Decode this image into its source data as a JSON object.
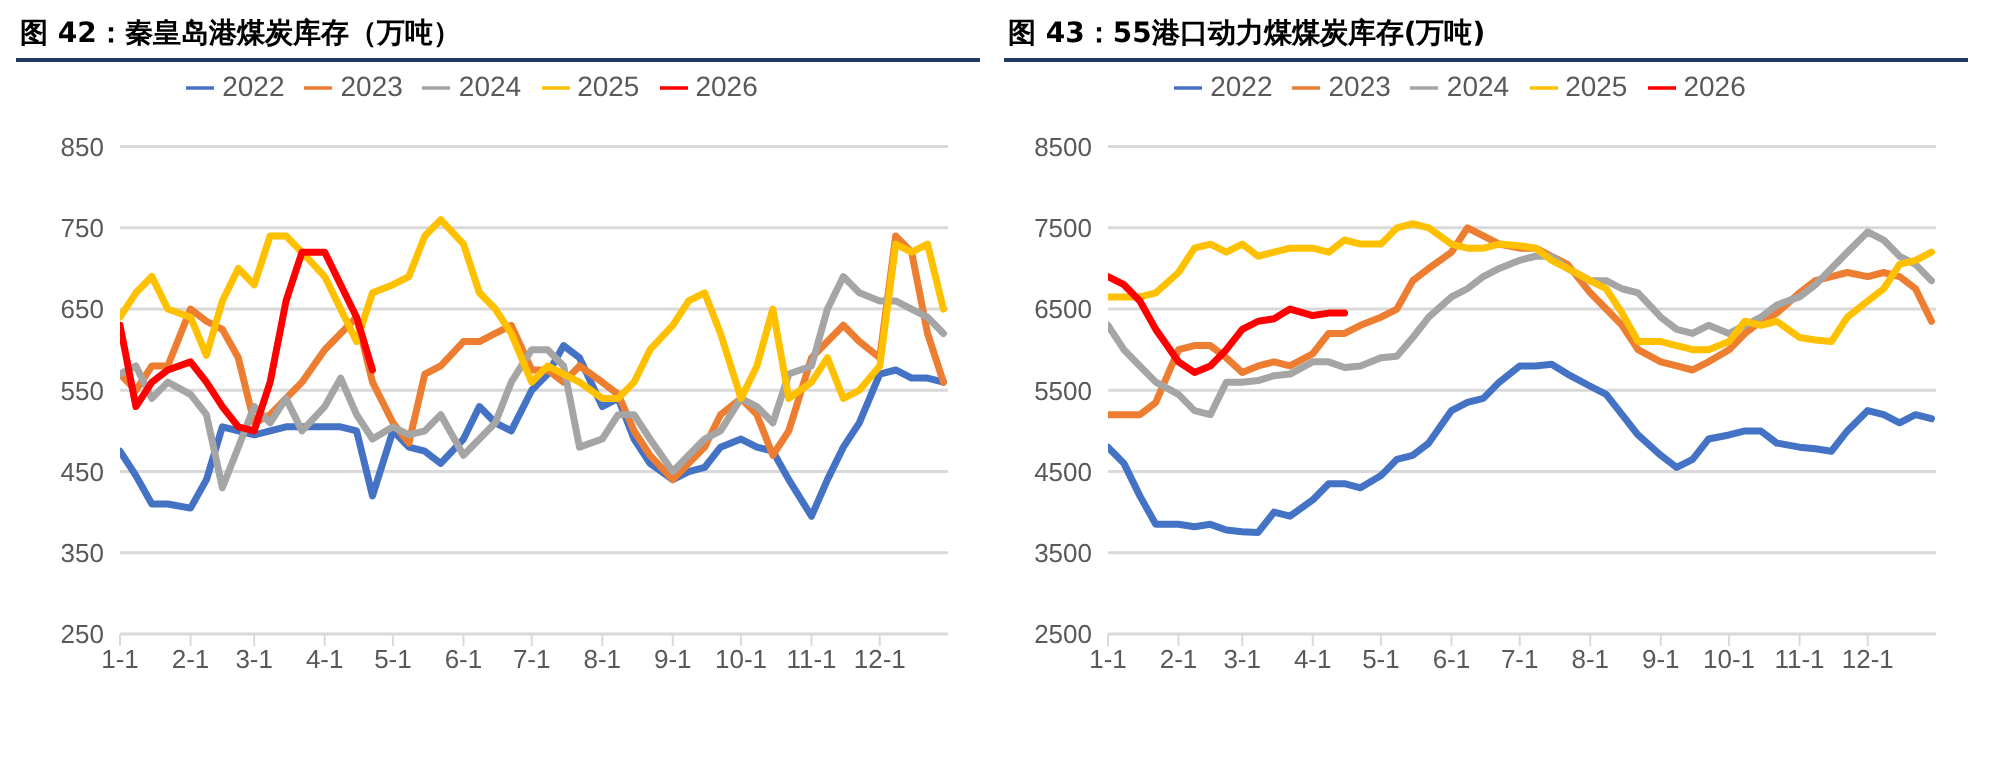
{
  "chart_data": [
    {
      "type": "line",
      "title": "图 42：秦皇岛港煤炭库存（万吨）",
      "legend": "top",
      "grid": "y",
      "marker": "none",
      "line_style": "solid",
      "x": [
        "--01-01",
        "--01-08",
        "--01-15",
        "--01-22",
        "--02-01",
        "--02-08",
        "--02-15",
        "--02-22",
        "--03-01",
        "--03-08",
        "--03-15",
        "--03-22",
        "--04-01",
        "--04-08",
        "--04-15",
        "--04-22",
        "--05-01",
        "--05-08",
        "--05-15",
        "--05-22",
        "--06-01",
        "--06-08",
        "--06-15",
        "--06-22",
        "--07-01",
        "--07-08",
        "--07-15",
        "--07-22",
        "--08-01",
        "--08-08",
        "--08-15",
        "--08-22",
        "--09-01",
        "--09-08",
        "--09-15",
        "--09-22",
        "--10-01",
        "--10-08",
        "--10-15",
        "--10-22",
        "--11-01",
        "--11-08",
        "--11-15",
        "--11-22",
        "--12-01",
        "--12-08",
        "--12-15",
        "--12-22",
        "--12-29"
      ],
      "xlim": [
        "--01-01",
        "--12-31"
      ],
      "xticks": [
        {
          "value": "--01-01",
          "label": "1-1"
        },
        {
          "value": "--02-01",
          "label": "2-1"
        },
        {
          "value": "--03-01",
          "label": "3-1"
        },
        {
          "value": "--04-01",
          "label": "4-1"
        },
        {
          "value": "--05-01",
          "label": "5-1"
        },
        {
          "value": "--06-01",
          "label": "6-1"
        },
        {
          "value": "--07-01",
          "label": "7-1"
        },
        {
          "value": "--08-01",
          "label": "8-1"
        },
        {
          "value": "--09-01",
          "label": "9-1"
        },
        {
          "value": "--10-01",
          "label": "10-1"
        },
        {
          "value": "--11-01",
          "label": "11-1"
        },
        {
          "value": "--12-01",
          "label": "12-1"
        }
      ],
      "ylim": [
        250,
        850
      ],
      "yticks": [
        250,
        350,
        450,
        550,
        650,
        750,
        850
      ],
      "series": [
        {
          "name": "2022",
          "color": "#4472c4",
          "values": [
            475,
            445,
            410,
            410,
            405,
            440,
            505,
            500,
            495,
            500,
            505,
            505,
            505,
            505,
            500,
            420,
            500,
            480,
            475,
            460,
            490,
            530,
            510,
            500,
            550,
            570,
            605,
            590,
            530,
            540,
            490,
            460,
            440,
            450,
            455,
            480,
            490,
            480,
            475,
            440,
            395,
            440,
            480,
            510,
            570,
            575,
            565,
            565,
            560
          ]
        },
        {
          "name": "2023",
          "color": "#ed7d31",
          "values": [
            570,
            550,
            580,
            580,
            650,
            635,
            625,
            590,
            510,
            520,
            540,
            560,
            600,
            620,
            640,
            560,
            510,
            485,
            570,
            580,
            610,
            610,
            620,
            630,
            575,
            575,
            560,
            580,
            560,
            545,
            500,
            470,
            440,
            460,
            480,
            520,
            540,
            520,
            470,
            500,
            590,
            610,
            630,
            610,
            590,
            740,
            720,
            620,
            560
          ]
        },
        {
          "name": "2024",
          "color": "#a5a5a5",
          "values": [
            570,
            580,
            540,
            560,
            545,
            520,
            430,
            480,
            530,
            510,
            540,
            500,
            530,
            565,
            520,
            490,
            505,
            495,
            500,
            520,
            470,
            490,
            510,
            560,
            600,
            600,
            580,
            480,
            490,
            520,
            520,
            490,
            450,
            470,
            490,
            500,
            540,
            530,
            510,
            570,
            580,
            650,
            690,
            670,
            660,
            660,
            650,
            640,
            620
          ]
        },
        {
          "name": "2025",
          "color": "#ffc000",
          "values": [
            640,
            670,
            690,
            650,
            640,
            593,
            660,
            700,
            680,
            740,
            740,
            720,
            690,
            650,
            610,
            670,
            680,
            690,
            740,
            760,
            730,
            670,
            650,
            620,
            560,
            580,
            570,
            560,
            540,
            540,
            560,
            600,
            630,
            660,
            670,
            620,
            540,
            580,
            650,
            540,
            560,
            590,
            540,
            550,
            580,
            730,
            720,
            730,
            650
          ]
        },
        {
          "name": "2026",
          "color": "#ff0000",
          "values": [
            630,
            530,
            560,
            575,
            585,
            560,
            530,
            505,
            500,
            560,
            660,
            720,
            720,
            680,
            640,
            575,
            null,
            null,
            null,
            null,
            null,
            null,
            null,
            null,
            null,
            null,
            null,
            null,
            null,
            null,
            null,
            null,
            null,
            null,
            null,
            null,
            null,
            null,
            null,
            null,
            null,
            null,
            null,
            null,
            null,
            null,
            null,
            null,
            null
          ]
        }
      ]
    },
    {
      "type": "line",
      "title": "图 43：55港口动力煤煤炭库存(万吨)",
      "legend": "top",
      "grid": "y",
      "marker": "none",
      "line_style": "solid",
      "x": [
        "--01-01",
        "--01-08",
        "--01-15",
        "--01-22",
        "--02-01",
        "--02-08",
        "--02-15",
        "--02-22",
        "--03-01",
        "--03-08",
        "--03-15",
        "--03-22",
        "--04-01",
        "--04-08",
        "--04-15",
        "--04-22",
        "--05-01",
        "--05-08",
        "--05-15",
        "--05-22",
        "--06-01",
        "--06-08",
        "--06-15",
        "--06-22",
        "--07-01",
        "--07-08",
        "--07-15",
        "--07-22",
        "--08-01",
        "--08-08",
        "--08-15",
        "--08-22",
        "--09-01",
        "--09-08",
        "--09-15",
        "--09-22",
        "--10-01",
        "--10-08",
        "--10-15",
        "--10-22",
        "--11-01",
        "--11-08",
        "--11-15",
        "--11-22",
        "--12-01",
        "--12-08",
        "--12-15",
        "--12-22",
        "--12-29"
      ],
      "xlim": [
        "--01-01",
        "--12-31"
      ],
      "xticks": [
        {
          "value": "--01-01",
          "label": "1-1"
        },
        {
          "value": "--02-01",
          "label": "2-1"
        },
        {
          "value": "--03-01",
          "label": "3-1"
        },
        {
          "value": "--04-01",
          "label": "4-1"
        },
        {
          "value": "--05-01",
          "label": "5-1"
        },
        {
          "value": "--06-01",
          "label": "6-1"
        },
        {
          "value": "--07-01",
          "label": "7-1"
        },
        {
          "value": "--08-01",
          "label": "8-1"
        },
        {
          "value": "--09-01",
          "label": "9-1"
        },
        {
          "value": "--10-01",
          "label": "10-1"
        },
        {
          "value": "--11-01",
          "label": "11-1"
        },
        {
          "value": "--12-01",
          "label": "12-1"
        }
      ],
      "ylim": [
        2500,
        8500
      ],
      "yticks": [
        2500,
        3500,
        4500,
        5500,
        6500,
        7500,
        8500
      ],
      "series": [
        {
          "name": "2022",
          "color": "#4472c4",
          "values": [
            4800,
            4600,
            4200,
            3850,
            3850,
            3820,
            3850,
            3780,
            3760,
            3750,
            4000,
            3950,
            4150,
            4350,
            4350,
            4300,
            4450,
            4650,
            4700,
            4850,
            5250,
            5350,
            5400,
            5600,
            5800,
            5800,
            5820,
            5700,
            5550,
            5450,
            5200,
            4950,
            4700,
            4550,
            4650,
            4900,
            4950,
            5000,
            5000,
            4850,
            4800,
            4780,
            4750,
            5000,
            5250,
            5200,
            5100,
            5200,
            5150
          ]
        },
        {
          "name": "2023",
          "color": "#ed7d31",
          "values": [
            5200,
            5200,
            5200,
            5350,
            6000,
            6050,
            6050,
            5900,
            5720,
            5800,
            5850,
            5800,
            5950,
            6200,
            6200,
            6300,
            6400,
            6500,
            6850,
            7000,
            7200,
            7500,
            7400,
            7300,
            7250,
            7250,
            7150,
            7050,
            6700,
            6500,
            6300,
            6000,
            5850,
            5800,
            5750,
            5850,
            6000,
            6200,
            6350,
            6450,
            6700,
            6850,
            6900,
            6950,
            6900,
            6950,
            6900,
            6750,
            6350
          ]
        },
        {
          "name": "2024",
          "color": "#a5a5a5",
          "values": [
            6300,
            6000,
            5800,
            5600,
            5450,
            5250,
            5200,
            5600,
            5600,
            5620,
            5680,
            5700,
            5850,
            5850,
            5780,
            5800,
            5900,
            5920,
            6150,
            6400,
            6650,
            6750,
            6900,
            7000,
            7100,
            7150,
            7150,
            7000,
            6850,
            6850,
            6750,
            6700,
            6400,
            6250,
            6200,
            6300,
            6200,
            6300,
            6400,
            6550,
            6650,
            6800,
            7000,
            7200,
            7450,
            7350,
            7150,
            7050,
            6850
          ]
        },
        {
          "name": "2025",
          "color": "#ffc000",
          "values": [
            6650,
            6650,
            6650,
            6700,
            6950,
            7250,
            7300,
            7200,
            7300,
            7150,
            7200,
            7250,
            7250,
            7200,
            7350,
            7300,
            7300,
            7500,
            7550,
            7500,
            7300,
            7250,
            7250,
            7300,
            7280,
            7250,
            7100,
            7000,
            6850,
            6750,
            6450,
            6100,
            6100,
            6050,
            6000,
            6000,
            6100,
            6350,
            6300,
            6350,
            6150,
            6120,
            6100,
            6400,
            6600,
            6750,
            7050,
            7100,
            7200
          ]
        },
        {
          "name": "2026",
          "color": "#ff0000",
          "values": [
            6900,
            6800,
            6600,
            6250,
            5850,
            5720,
            5800,
            6000,
            6250,
            6350,
            6380,
            6500,
            6420,
            6450,
            6450,
            null,
            null,
            null,
            null,
            null,
            null,
            null,
            null,
            null,
            null,
            null,
            null,
            null,
            null,
            null,
            null,
            null,
            null,
            null,
            null,
            null,
            null,
            null,
            null,
            null,
            null,
            null,
            null,
            null,
            null,
            null,
            null,
            null,
            null
          ]
        }
      ]
    }
  ]
}
